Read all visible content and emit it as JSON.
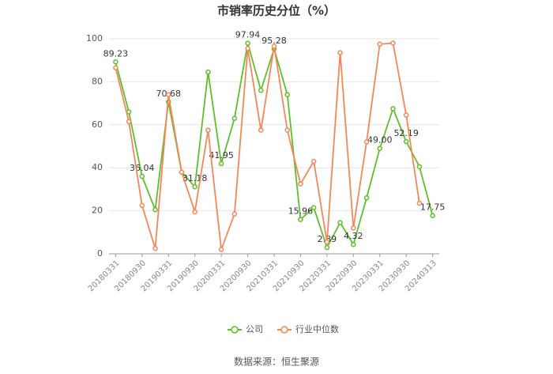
{
  "chart_data": {
    "type": "line",
    "title": "市销率历史分位（%）",
    "categories": [
      "20180331",
      null,
      "20180930",
      null,
      "20190331",
      null,
      "20190930",
      null,
      "20200331",
      null,
      "20200930",
      null,
      "20210331",
      null,
      "20210930",
      null,
      "20220331",
      null,
      "20220930",
      null,
      "20230331",
      null,
      "20230930",
      null,
      "20240313"
    ],
    "series": [
      {
        "name": "公司",
        "color": "#5dbf2a",
        "values": [
          89.23,
          66,
          36.04,
          20.5,
          70.68,
          38,
          31.18,
          84.5,
          41.95,
          63,
          97.94,
          76,
          95.28,
          74,
          15.96,
          21.5,
          2.89,
          14.5,
          4.32,
          26,
          49.0,
          67.5,
          52.19,
          40.5,
          17.75
        ],
        "value_labels": [
          "89.23",
          null,
          "36.04",
          null,
          "70.68",
          null,
          "31.18",
          null,
          "41.95",
          null,
          "97.94",
          null,
          "95.28",
          null,
          "15.96",
          null,
          "2.89",
          null,
          "4.32",
          null,
          "49.00",
          null,
          "52.19",
          null,
          "17.75"
        ]
      },
      {
        "name": "行业中位数",
        "color": "#f3875a",
        "values": [
          86.5,
          61.5,
          22.5,
          2.5,
          74,
          38,
          19.5,
          57.5,
          2,
          18.5,
          95.5,
          57.5,
          96.5,
          57.5,
          32.5,
          43,
          5.5,
          93.5,
          12,
          52,
          97.5,
          98,
          64.5,
          23.5,
          null
        ]
      }
    ],
    "ylim": [
      0,
      100
    ],
    "yticks": [
      0,
      20,
      40,
      60,
      80,
      100
    ],
    "grid": true,
    "source": "数据来源：恒生聚源"
  }
}
